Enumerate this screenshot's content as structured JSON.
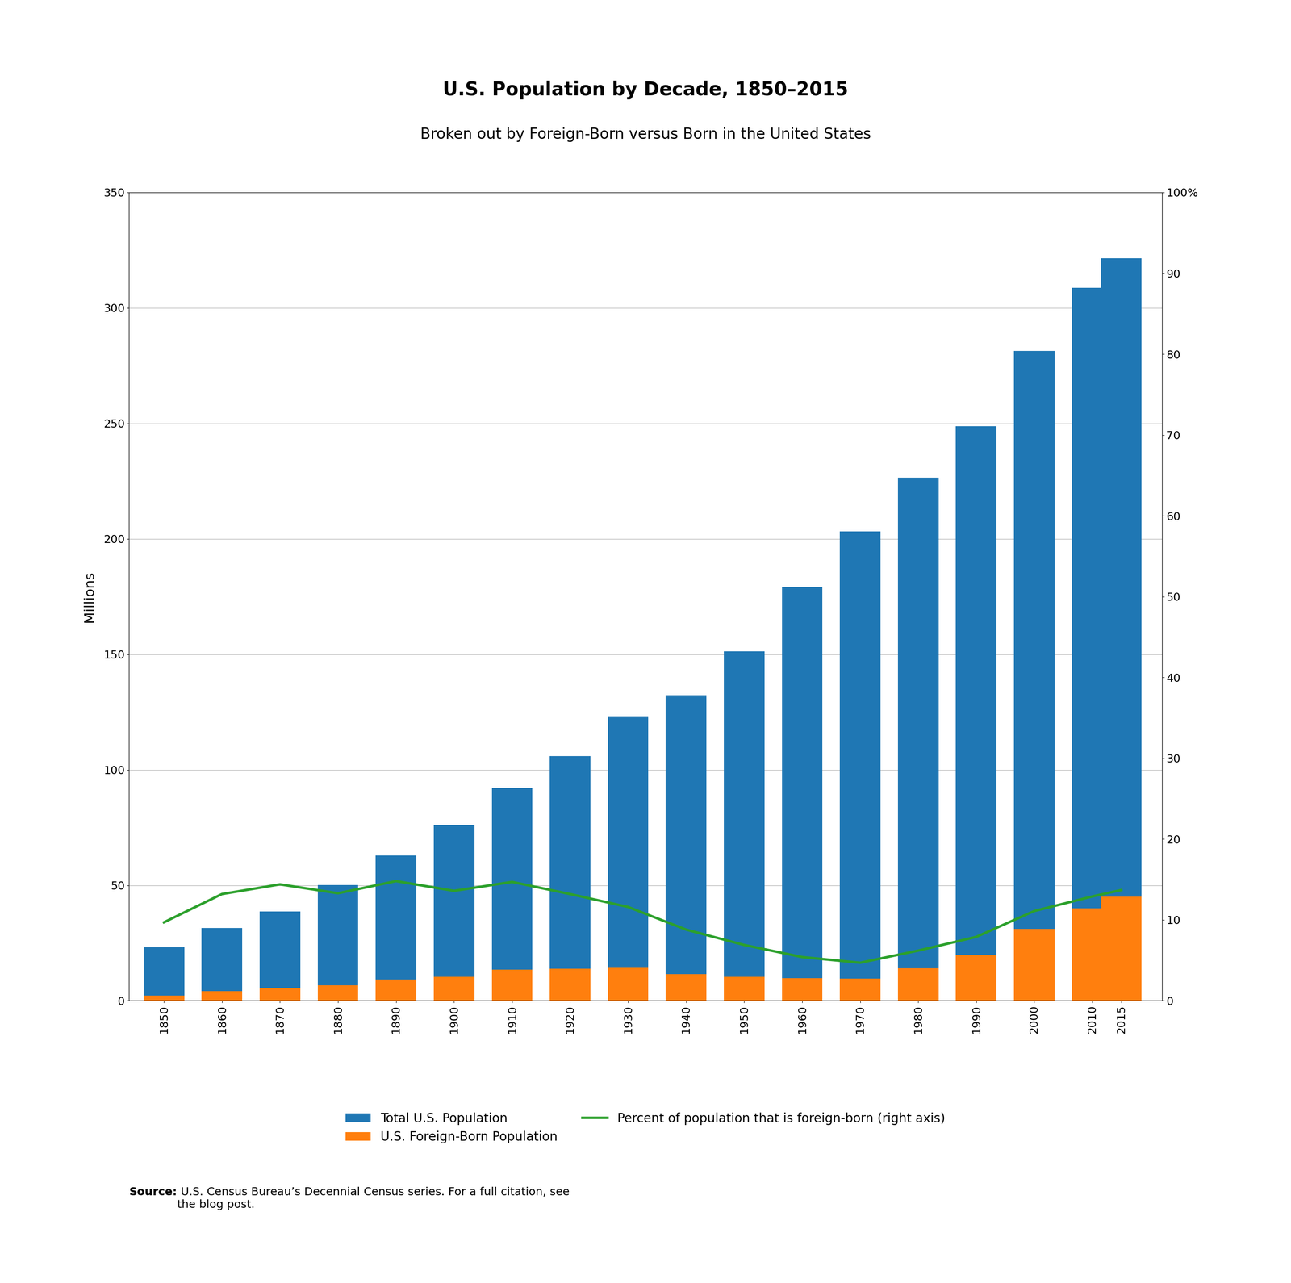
{
  "chart_data": {
    "type": "bar",
    "title": "U.S. Population by Decade, 1850–2015",
    "subtitle": "Broken out by Foreign-Born versus Born in the United States",
    "y_label": "Millions",
    "x": [
      1850,
      1860,
      1870,
      1880,
      1890,
      1900,
      1910,
      1920,
      1930,
      1940,
      1950,
      1960,
      1970,
      1980,
      1990,
      2000,
      2010,
      2015
    ],
    "series": [
      {
        "name": "Total U.S. Population",
        "type": "bar",
        "values": [
          23.2,
          31.4,
          38.6,
          50.2,
          62.9,
          76.0,
          92.2,
          106.0,
          123.2,
          132.2,
          151.3,
          179.3,
          203.3,
          226.5,
          248.7,
          281.4,
          308.7,
          321.4
        ]
      },
      {
        "name": "U.S. Foreign-Born Population",
        "type": "bar",
        "values": [
          2.2,
          4.1,
          5.6,
          6.7,
          9.2,
          10.3,
          13.5,
          13.9,
          14.2,
          11.6,
          10.3,
          9.7,
          9.6,
          14.1,
          19.8,
          31.1,
          40.0,
          45.0
        ]
      },
      {
        "name": "Percent of population that is foreign-born (right axis)",
        "type": "line",
        "axis": "y2",
        "values": [
          9.7,
          13.2,
          14.4,
          13.3,
          14.8,
          13.6,
          14.7,
          13.2,
          11.6,
          8.8,
          6.9,
          5.4,
          4.7,
          6.2,
          7.9,
          11.1,
          12.9,
          13.7
        ]
      }
    ],
    "xlim": [
      1844,
      2022
    ],
    "xticks": [
      1850,
      1860,
      1870,
      1880,
      1890,
      1900,
      1910,
      1920,
      1930,
      1940,
      1950,
      1960,
      1970,
      1980,
      1990,
      2000,
      2010,
      2015
    ],
    "ylim": [
      0,
      350
    ],
    "yticks": [
      0,
      50,
      100,
      150,
      200,
      250,
      300,
      350
    ],
    "y2lim": [
      0,
      100
    ],
    "y2ticks": [
      0,
      10,
      20,
      30,
      40,
      50,
      60,
      70,
      80,
      90,
      {
        "value": 100,
        "label": "100%"
      }
    ],
    "stacked": false,
    "grid": true,
    "legend": "lower center",
    "annotations": [
      "Source:",
      " U.S. Census Bureau’s Decennial Census series. For a full citation, see\nthe blog post."
    ]
  }
}
